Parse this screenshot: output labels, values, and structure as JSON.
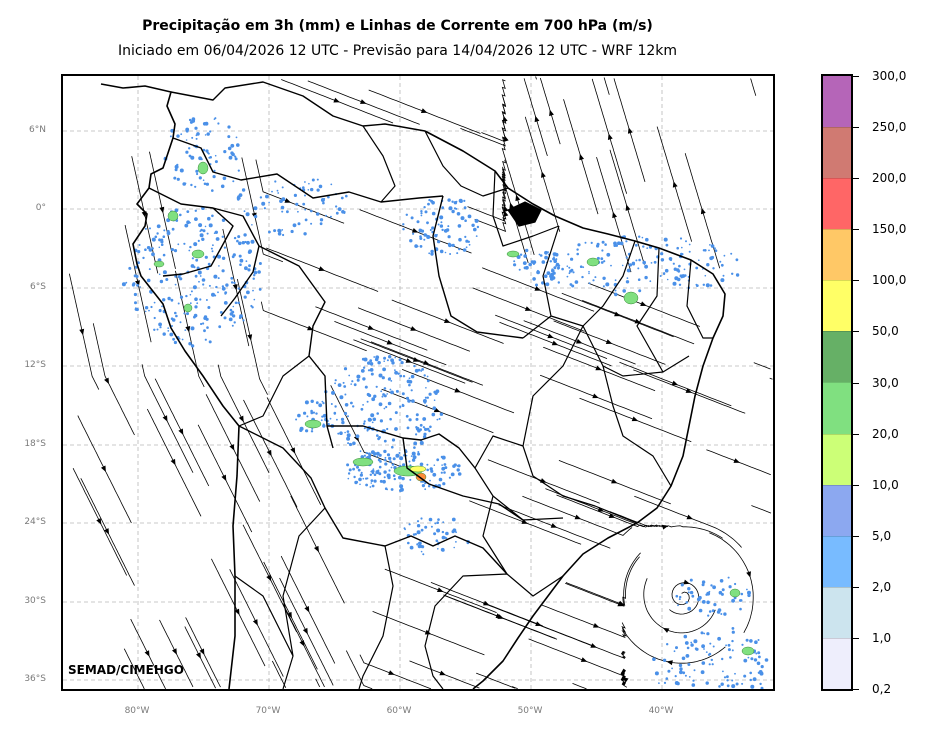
{
  "title": "Precipitação em 3h (mm) e Linhas de Corrente em 700 hPa (m/s)",
  "subtitle": "Iniciado em 06/04/2026 12 UTC - Previsão para 14/04/2026 12 UTC - WRF 12km",
  "credit": "SEMAD/CIMEHGO",
  "lat_labels": [
    "6°N",
    "0°",
    "6°S",
    "12°S",
    "18°S",
    "24°S",
    "30°S",
    "36°S"
  ],
  "lon_labels": [
    "80°W",
    "70°W",
    "60°W",
    "50°W",
    "40°W"
  ],
  "colorbar": {
    "labels": [
      "300,0",
      "250,0",
      "200,0",
      "150,0",
      "100,0",
      "50,0",
      "30,0",
      "20,0",
      "10,0",
      "5,0",
      "2,0",
      "1,0",
      "0,2"
    ],
    "colors": [
      "#b565b8",
      "#d07a72",
      "#ff6666",
      "#ffc866",
      "#ffff66",
      "#66b066",
      "#80e080",
      "#ccff77",
      "#8ca8f0",
      "#78bbff",
      "#cce4ee",
      "#eeeefc"
    ]
  },
  "colors": {
    "rain_light": "#4a90e8",
    "rain_moderate": "#80e080",
    "rain_heavy": "#ffff66",
    "rain_intense": "#ff8c3a",
    "gridline": "#b8b8b8"
  }
}
